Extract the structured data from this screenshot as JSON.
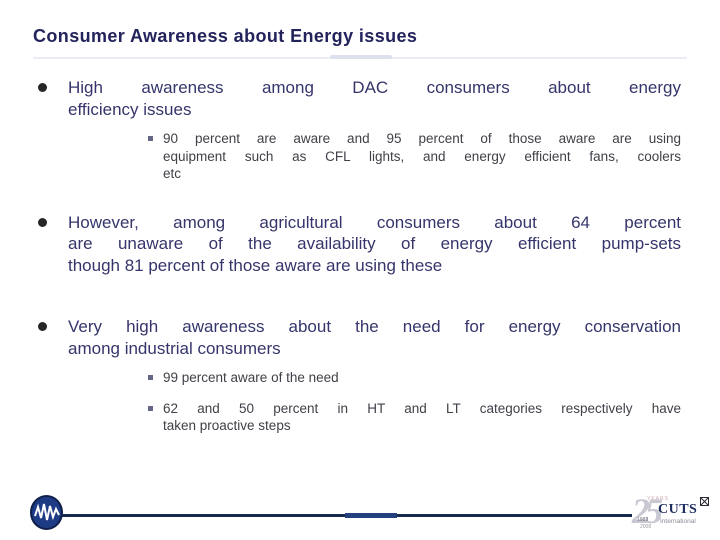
{
  "slide": {
    "title": "Consumer Awareness about Energy issues",
    "bullets": [
      {
        "level": 1,
        "lines": [
          "High awareness among DAC consumers about energy",
          "efficiency issues"
        ]
      },
      {
        "level": 2,
        "lines": [
          "90 percent are aware and 95 percent of those aware are using",
          "equipment such as CFL lights, and energy efficient fans, coolers",
          "etc"
        ]
      },
      {
        "level": 1,
        "lines": [
          "However, among agricultural consumers about 64 percent",
          "are unaware of the availability of energy efficient pump-sets",
          "though 81 percent of those aware are using these"
        ]
      },
      {
        "level": 1,
        "lines": [
          "Very high awareness about the need for energy conservation",
          "among industrial consumers"
        ]
      },
      {
        "level": 2,
        "lines": [
          "99 percent aware of the need"
        ]
      },
      {
        "level": 2,
        "lines": [
          "62 and 50 percent in HT and LT categories respectively have",
          "taken proactive steps"
        ]
      }
    ],
    "footer": {
      "org_name": "CUTS",
      "org_subtitle": "International",
      "anniversary_number": "25",
      "anniversary_top_label": "YEARS",
      "anniversary_year_start": "1983",
      "anniversary_year_end": "2008",
      "logo_icon": "waveform-icon",
      "org_mark_icon": "compass-square-icon"
    },
    "colors": {
      "title_text": "#23235c",
      "body_text": "#35356b",
      "sub_text": "#404048",
      "bullet_dot": "#262626",
      "sub_bullet_square": "#666687",
      "footer_line": "#16294f",
      "footer_line_segment": "#24407e",
      "logo_circle": "#1e3c85",
      "cuts_name": "#1d2c5e",
      "anniversary_number": "#c8c8d2",
      "title_rule": "#ececf3"
    }
  }
}
